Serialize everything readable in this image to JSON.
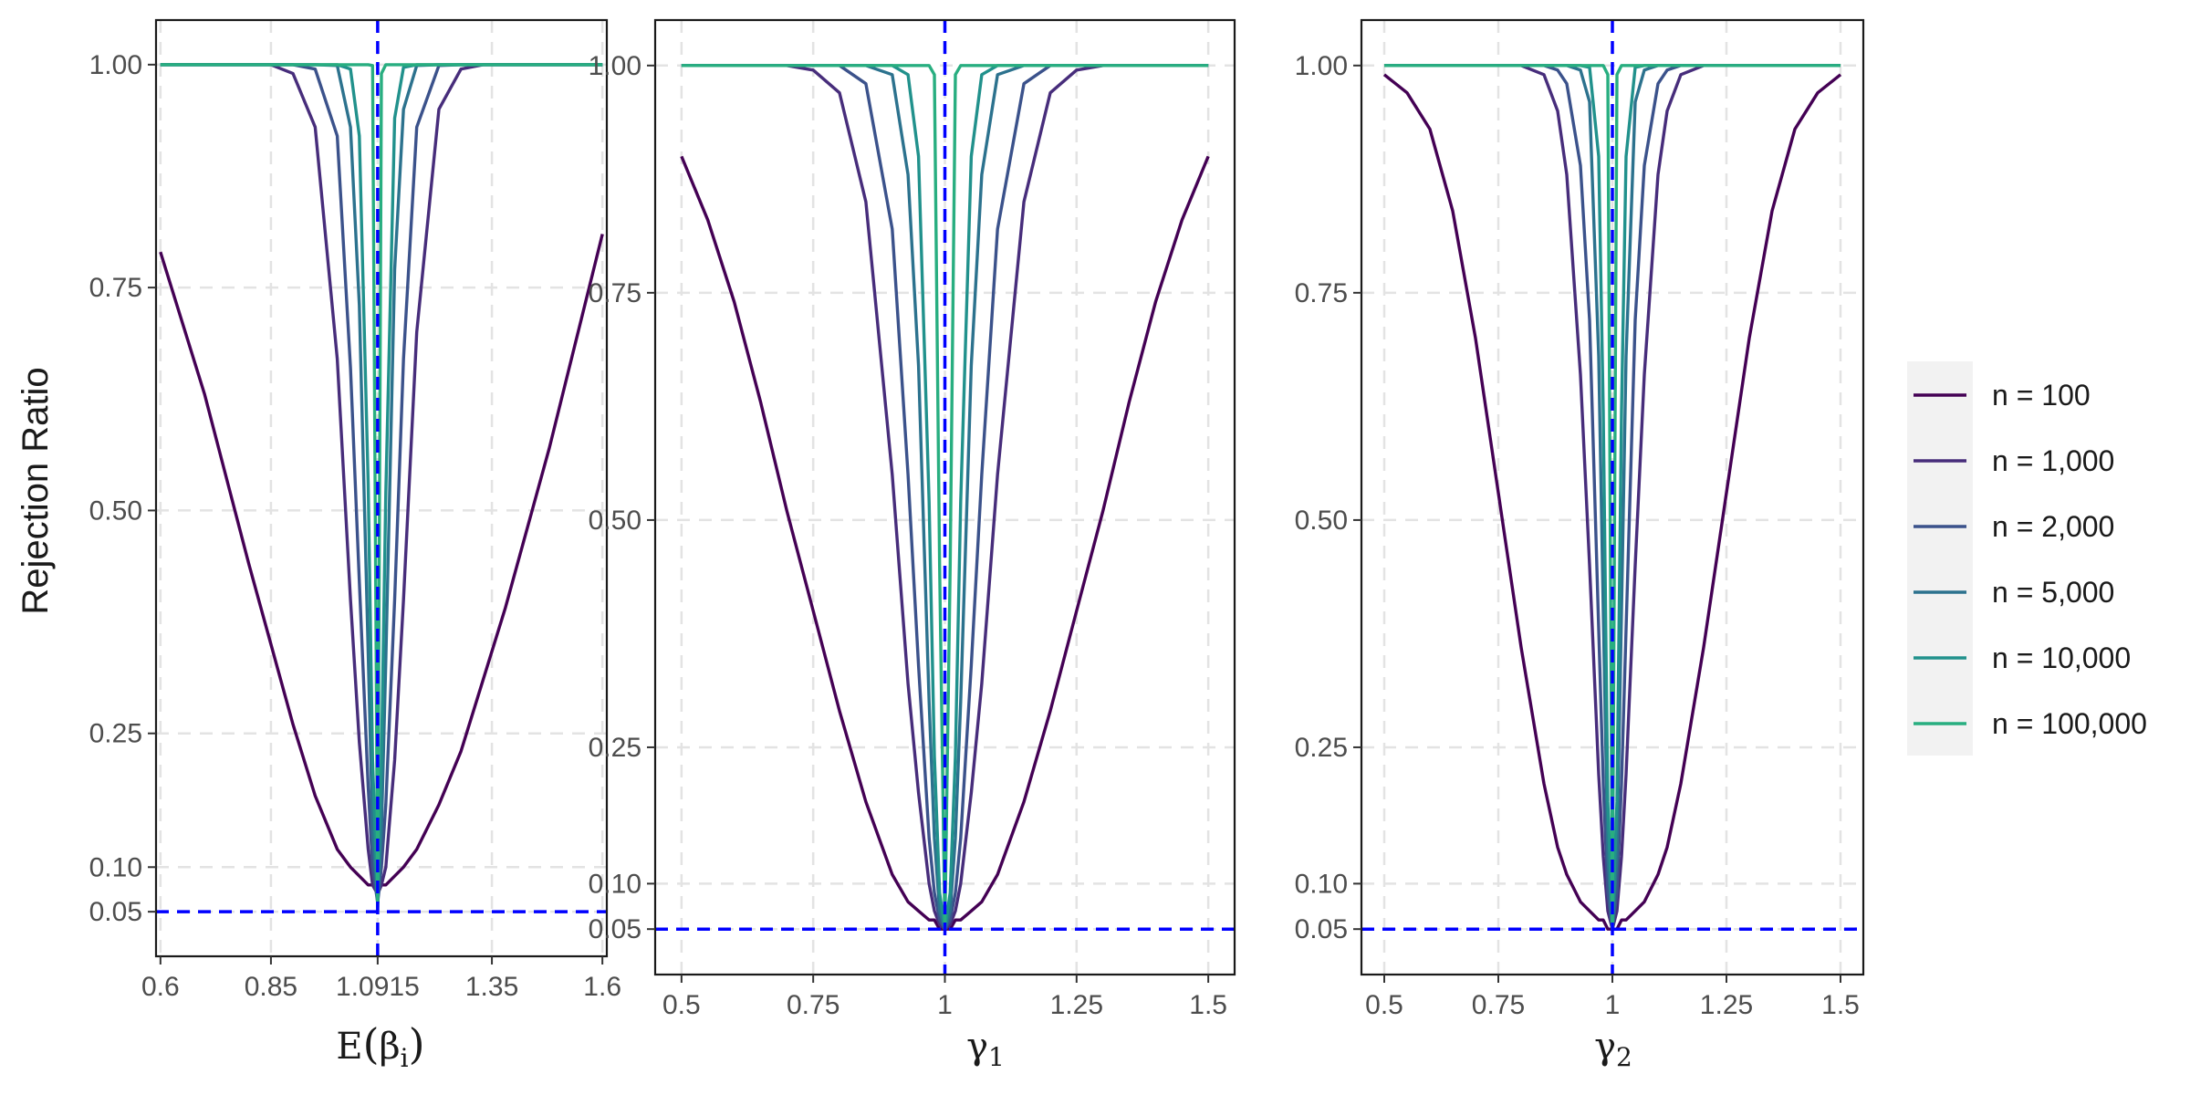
{
  "figure": {
    "ylabel": "Rejection Ratio"
  },
  "chart_data": [
    {
      "type": "line",
      "xlabel": "E(β_i)",
      "ylabel": "Rejection Ratio",
      "true_value": 1.0915,
      "xlim": [
        0.59,
        1.61
      ],
      "ylim": [
        0.0,
        1.05
      ],
      "x_ticks": [
        0.6,
        0.85,
        1.0915,
        1.35,
        1.6
      ],
      "x_tick_labels": [
        "0.6",
        "0.85",
        "1.0915",
        "1.35",
        "1.6"
      ],
      "y_ticks": [
        0.05,
        0.1,
        0.25,
        0.5,
        0.75,
        1.0
      ],
      "y_tick_labels": [
        "0.05",
        "0.10",
        "0.25",
        "0.50",
        "0.75",
        "1.00"
      ],
      "reference_lines": {
        "horizontal": 0.05,
        "vertical": 1.0915,
        "color": "#0000ff",
        "style": "dashed"
      },
      "grid": true,
      "x": [
        0.6,
        0.7,
        0.8,
        0.85,
        0.9,
        0.95,
        1.0,
        1.03,
        1.05,
        1.07,
        1.08,
        1.0915,
        1.1,
        1.11,
        1.13,
        1.15,
        1.18,
        1.23,
        1.28,
        1.33,
        1.38,
        1.48,
        1.6
      ],
      "series": [
        {
          "name": "n = 100",
          "values": [
            0.79,
            0.63,
            0.44,
            0.35,
            0.26,
            0.18,
            0.12,
            0.1,
            0.09,
            0.08,
            0.08,
            0.07,
            0.08,
            0.08,
            0.09,
            0.1,
            0.12,
            0.17,
            0.23,
            0.31,
            0.39,
            0.57,
            0.81
          ]
        },
        {
          "name": "n = 1,000",
          "values": [
            1.0,
            1.0,
            1.0,
            1.0,
            0.99,
            0.93,
            0.67,
            0.4,
            0.24,
            0.12,
            0.08,
            0.07,
            0.08,
            0.1,
            0.22,
            0.4,
            0.7,
            0.95,
            0.995,
            1.0,
            1.0,
            1.0,
            1.0
          ]
        },
        {
          "name": "n = 2,000",
          "values": [
            1.0,
            1.0,
            1.0,
            1.0,
            1.0,
            0.995,
            0.92,
            0.66,
            0.42,
            0.19,
            0.1,
            0.06,
            0.1,
            0.17,
            0.4,
            0.67,
            0.93,
            0.999,
            1.0,
            1.0,
            1.0,
            1.0,
            1.0
          ]
        },
        {
          "name": "n = 5,000",
          "values": [
            1.0,
            1.0,
            1.0,
            1.0,
            1.0,
            1.0,
            0.999,
            0.93,
            0.73,
            0.34,
            0.14,
            0.06,
            0.14,
            0.33,
            0.77,
            0.95,
            0.999,
            1.0,
            1.0,
            1.0,
            1.0,
            1.0,
            1.0
          ]
        },
        {
          "name": "n = 10,000",
          "values": [
            1.0,
            1.0,
            1.0,
            1.0,
            1.0,
            1.0,
            1.0,
            0.995,
            0.92,
            0.53,
            0.22,
            0.055,
            0.22,
            0.52,
            0.94,
            0.997,
            1.0,
            1.0,
            1.0,
            1.0,
            1.0,
            1.0,
            1.0
          ]
        },
        {
          "name": "n = 100,000",
          "values": [
            1.0,
            1.0,
            1.0,
            1.0,
            1.0,
            1.0,
            1.0,
            1.0,
            1.0,
            1.0,
            0.999,
            0.05,
            0.99,
            1.0,
            1.0,
            1.0,
            1.0,
            1.0,
            1.0,
            1.0,
            1.0,
            1.0,
            1.0
          ]
        }
      ]
    },
    {
      "type": "line",
      "xlabel": "γ_1",
      "ylabel": "Rejection Ratio",
      "true_value": 1.0,
      "xlim": [
        0.45,
        1.55
      ],
      "ylim": [
        0.0,
        1.05
      ],
      "x_ticks": [
        0.5,
        0.75,
        1.0,
        1.25,
        1.5
      ],
      "x_tick_labels": [
        "0.5",
        "0.75",
        "1",
        "1.25",
        "1.5"
      ],
      "y_ticks": [
        0.05,
        0.1,
        0.25,
        0.5,
        0.75,
        1.0
      ],
      "y_tick_labels": [
        "0.05",
        "0.10",
        "0.25",
        "0.50",
        "0.75",
        "1.00"
      ],
      "reference_lines": {
        "horizontal": 0.05,
        "vertical": 1.0,
        "color": "#0000ff",
        "style": "dashed"
      },
      "grid": true,
      "x": [
        0.5,
        0.55,
        0.6,
        0.65,
        0.7,
        0.75,
        0.8,
        0.85,
        0.9,
        0.93,
        0.95,
        0.97,
        0.98,
        0.99,
        1.0,
        1.01,
        1.02,
        1.03,
        1.05,
        1.07,
        1.1,
        1.15,
        1.2,
        1.25,
        1.3,
        1.35,
        1.4,
        1.45,
        1.5
      ],
      "series": [
        {
          "name": "n = 100",
          "values": [
            0.9,
            0.83,
            0.74,
            0.63,
            0.51,
            0.4,
            0.29,
            0.19,
            0.11,
            0.08,
            0.07,
            0.06,
            0.06,
            0.05,
            0.05,
            0.05,
            0.06,
            0.06,
            0.07,
            0.08,
            0.11,
            0.19,
            0.29,
            0.4,
            0.51,
            0.63,
            0.74,
            0.83,
            0.9
          ]
        },
        {
          "name": "n = 1,000",
          "values": [
            1.0,
            1.0,
            1.0,
            1.0,
            1.0,
            0.995,
            0.97,
            0.85,
            0.55,
            0.32,
            0.2,
            0.1,
            0.07,
            0.055,
            0.05,
            0.055,
            0.07,
            0.1,
            0.2,
            0.32,
            0.55,
            0.85,
            0.97,
            0.995,
            1.0,
            1.0,
            1.0,
            1.0,
            1.0
          ]
        },
        {
          "name": "n = 2,000",
          "values": [
            1.0,
            1.0,
            1.0,
            1.0,
            1.0,
            1.0,
            1.0,
            0.98,
            0.82,
            0.55,
            0.34,
            0.15,
            0.09,
            0.06,
            0.05,
            0.06,
            0.09,
            0.15,
            0.34,
            0.55,
            0.82,
            0.98,
            1.0,
            1.0,
            1.0,
            1.0,
            1.0,
            1.0,
            1.0
          ]
        },
        {
          "name": "n = 5,000",
          "values": [
            1.0,
            1.0,
            1.0,
            1.0,
            1.0,
            1.0,
            1.0,
            1.0,
            0.99,
            0.88,
            0.67,
            0.3,
            0.15,
            0.07,
            0.05,
            0.07,
            0.15,
            0.3,
            0.67,
            0.88,
            0.99,
            1.0,
            1.0,
            1.0,
            1.0,
            1.0,
            1.0,
            1.0,
            1.0
          ]
        },
        {
          "name": "n = 10,000",
          "values": [
            1.0,
            1.0,
            1.0,
            1.0,
            1.0,
            1.0,
            1.0,
            1.0,
            1.0,
            0.99,
            0.9,
            0.52,
            0.24,
            0.09,
            0.05,
            0.09,
            0.24,
            0.52,
            0.9,
            0.99,
            1.0,
            1.0,
            1.0,
            1.0,
            1.0,
            1.0,
            1.0,
            1.0,
            1.0
          ]
        },
        {
          "name": "n = 100,000",
          "values": [
            1.0,
            1.0,
            1.0,
            1.0,
            1.0,
            1.0,
            1.0,
            1.0,
            1.0,
            1.0,
            1.0,
            1.0,
            0.99,
            0.45,
            0.05,
            0.45,
            0.99,
            1.0,
            1.0,
            1.0,
            1.0,
            1.0,
            1.0,
            1.0,
            1.0,
            1.0,
            1.0,
            1.0,
            1.0
          ]
        }
      ]
    },
    {
      "type": "line",
      "xlabel": "γ_2",
      "ylabel": "Rejection Ratio",
      "true_value": 1.0,
      "xlim": [
        0.45,
        1.55
      ],
      "ylim": [
        0.0,
        1.05
      ],
      "x_ticks": [
        0.5,
        0.75,
        1.0,
        1.25,
        1.5
      ],
      "x_tick_labels": [
        "0.5",
        "0.75",
        "1",
        "1.25",
        "1.5"
      ],
      "y_ticks": [
        0.05,
        0.1,
        0.25,
        0.5,
        0.75,
        1.0
      ],
      "y_tick_labels": [
        "0.05",
        "0.10",
        "0.25",
        "0.50",
        "0.75",
        "1.00"
      ],
      "reference_lines": {
        "horizontal": 0.05,
        "vertical": 1.0,
        "color": "#0000ff",
        "style": "dashed"
      },
      "grid": true,
      "x": [
        0.5,
        0.55,
        0.6,
        0.65,
        0.7,
        0.75,
        0.8,
        0.85,
        0.88,
        0.9,
        0.93,
        0.95,
        0.97,
        0.98,
        0.99,
        1.0,
        1.01,
        1.02,
        1.03,
        1.05,
        1.07,
        1.1,
        1.12,
        1.15,
        1.2,
        1.25,
        1.3,
        1.35,
        1.4,
        1.45,
        1.5
      ],
      "series": [
        {
          "name": "n = 100",
          "values": [
            0.99,
            0.97,
            0.93,
            0.84,
            0.7,
            0.53,
            0.36,
            0.21,
            0.14,
            0.11,
            0.08,
            0.07,
            0.06,
            0.06,
            0.05,
            0.05,
            0.05,
            0.06,
            0.06,
            0.07,
            0.08,
            0.11,
            0.14,
            0.21,
            0.36,
            0.53,
            0.7,
            0.84,
            0.93,
            0.97,
            0.99
          ]
        },
        {
          "name": "n = 1,000",
          "values": [
            1.0,
            1.0,
            1.0,
            1.0,
            1.0,
            1.0,
            1.0,
            0.99,
            0.95,
            0.88,
            0.66,
            0.45,
            0.22,
            0.13,
            0.07,
            0.05,
            0.07,
            0.13,
            0.22,
            0.45,
            0.66,
            0.88,
            0.95,
            0.99,
            1.0,
            1.0,
            1.0,
            1.0,
            1.0,
            1.0,
            1.0
          ]
        },
        {
          "name": "n = 2,000",
          "values": [
            1.0,
            1.0,
            1.0,
            1.0,
            1.0,
            1.0,
            1.0,
            1.0,
            0.995,
            0.98,
            0.89,
            0.72,
            0.38,
            0.21,
            0.09,
            0.05,
            0.09,
            0.21,
            0.38,
            0.72,
            0.89,
            0.98,
            0.995,
            1.0,
            1.0,
            1.0,
            1.0,
            1.0,
            1.0,
            1.0,
            1.0
          ]
        },
        {
          "name": "n = 5,000",
          "values": [
            1.0,
            1.0,
            1.0,
            1.0,
            1.0,
            1.0,
            1.0,
            1.0,
            1.0,
            1.0,
            0.995,
            0.96,
            0.68,
            0.4,
            0.13,
            0.05,
            0.13,
            0.4,
            0.68,
            0.96,
            0.995,
            1.0,
            1.0,
            1.0,
            1.0,
            1.0,
            1.0,
            1.0,
            1.0,
            1.0,
            1.0
          ]
        },
        {
          "name": "n = 10,000",
          "values": [
            1.0,
            1.0,
            1.0,
            1.0,
            1.0,
            1.0,
            1.0,
            1.0,
            1.0,
            1.0,
            1.0,
            0.998,
            0.9,
            0.62,
            0.19,
            0.05,
            0.19,
            0.62,
            0.9,
            0.998,
            1.0,
            1.0,
            1.0,
            1.0,
            1.0,
            1.0,
            1.0,
            1.0,
            1.0,
            1.0,
            1.0
          ]
        },
        {
          "name": "n = 100,000",
          "values": [
            1.0,
            1.0,
            1.0,
            1.0,
            1.0,
            1.0,
            1.0,
            1.0,
            1.0,
            1.0,
            1.0,
            1.0,
            1.0,
            1.0,
            0.99,
            0.05,
            0.99,
            1.0,
            1.0,
            1.0,
            1.0,
            1.0,
            1.0,
            1.0,
            1.0,
            1.0,
            1.0,
            1.0,
            1.0,
            1.0,
            1.0
          ]
        }
      ]
    }
  ],
  "legend": {
    "items": [
      {
        "label": "n = 100",
        "color": "#440154"
      },
      {
        "label": "n = 1,000",
        "color": "#472d7b"
      },
      {
        "label": "n = 2,000",
        "color": "#3b528b"
      },
      {
        "label": "n = 5,000",
        "color": "#2c728e"
      },
      {
        "label": "n = 10,000",
        "color": "#21918c"
      },
      {
        "label": "n = 100,000",
        "color": "#28ae80"
      }
    ]
  },
  "colors": {
    "reference": "#0000ff",
    "grid": "#e3e3e3",
    "panel_border": "#1a1a1a",
    "legend_bg": "#f2f2f2"
  }
}
